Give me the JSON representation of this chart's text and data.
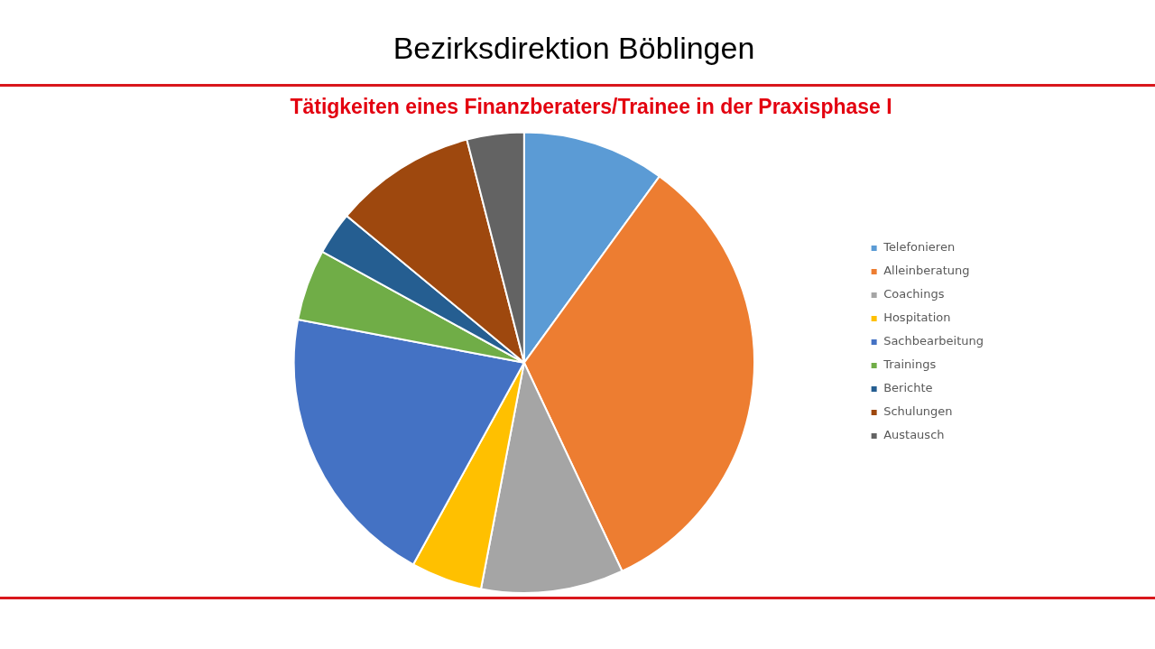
{
  "chart_data": {
    "type": "pie",
    "title": "Bezirksdirektion Böblingen",
    "subtitle": "Tätigkeiten eines Finanzberaters/Trainee in der Praxisphase I",
    "categories": [
      "Telefonieren",
      "Alleinberatung",
      "Coachings",
      "Hospitation",
      "Sachbearbeitung",
      "Trainings",
      "Berichte",
      "Schulungen",
      "Austausch"
    ],
    "values": [
      10,
      33,
      10,
      5,
      20,
      5,
      3,
      10,
      4
    ],
    "colors": [
      "#5b9bd5",
      "#ed7d31",
      "#a5a5a5",
      "#ffc000",
      "#4472c4",
      "#70ad47",
      "#255e91",
      "#9e480e",
      "#636363"
    ],
    "legend": "right"
  }
}
